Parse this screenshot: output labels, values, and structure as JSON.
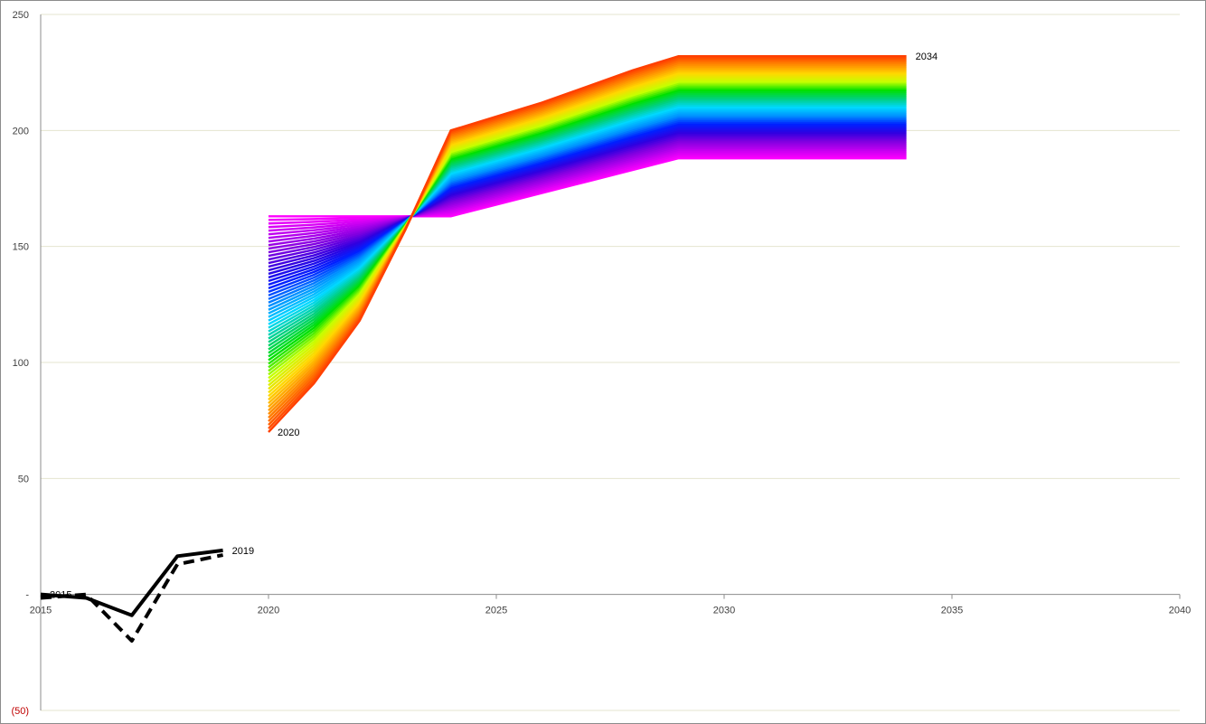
{
  "chart_data": {
    "type": "line",
    "title": "",
    "xlabel": "",
    "ylabel": "",
    "xlim": [
      2015,
      2040
    ],
    "ylim": [
      -50,
      250
    ],
    "grid": true,
    "legend": "none",
    "x_ticks": [
      2015,
      2020,
      2025,
      2030,
      2035,
      2040
    ],
    "x_tick_labels": [
      "2015",
      "2020",
      "2025",
      "2030",
      "2035",
      "2040"
    ],
    "y_ticks": [
      250,
      200,
      150,
      100,
      50,
      0,
      -50
    ],
    "y_tick_labels": [
      "250",
      "200",
      "150",
      "100",
      "50",
      "-",
      "(50)"
    ],
    "negative_tick_color": "#c00000",
    "gridline_color": "#e4e4cf",
    "history_series": [
      {
        "style": "solid",
        "x": [
          2015,
          2016,
          2017,
          2018,
          2019
        ],
        "values": [
          0,
          -1.5,
          -9,
          16.5,
          19
        ]
      },
      {
        "style": "dashed",
        "x": [
          2015,
          2016,
          2017,
          2018,
          2019
        ],
        "values": [
          -1.5,
          0,
          -20,
          13,
          17
        ]
      }
    ],
    "fan": {
      "count": 61,
      "x": [
        2020,
        2021,
        2022,
        2023,
        2024,
        2025,
        2026,
        2027,
        2028,
        2029,
        2034
      ],
      "first_series": [
        70,
        91,
        118,
        157,
        200,
        206,
        212,
        219,
        226,
        232,
        232
      ],
      "last_series": [
        163,
        163,
        163,
        163,
        163,
        168,
        173,
        178,
        183,
        188,
        188
      ],
      "colors": [
        "#ff4000",
        "#ff8c00",
        "#ffd700",
        "#c6ff00",
        "#00e000",
        "#00d080",
        "#00d8ff",
        "#0090ff",
        "#0020ff",
        "#3000e0",
        "#8000e0",
        "#c000f0",
        "#ff00ff"
      ]
    },
    "annotations": [
      {
        "text": "2015",
        "x": 2015,
        "y": 0
      },
      {
        "text": "2019",
        "x": 2019,
        "y": 19
      },
      {
        "text": "2020",
        "x": 2020,
        "y": 70
      },
      {
        "text": "2034",
        "x": 2034,
        "y": 232
      }
    ]
  }
}
